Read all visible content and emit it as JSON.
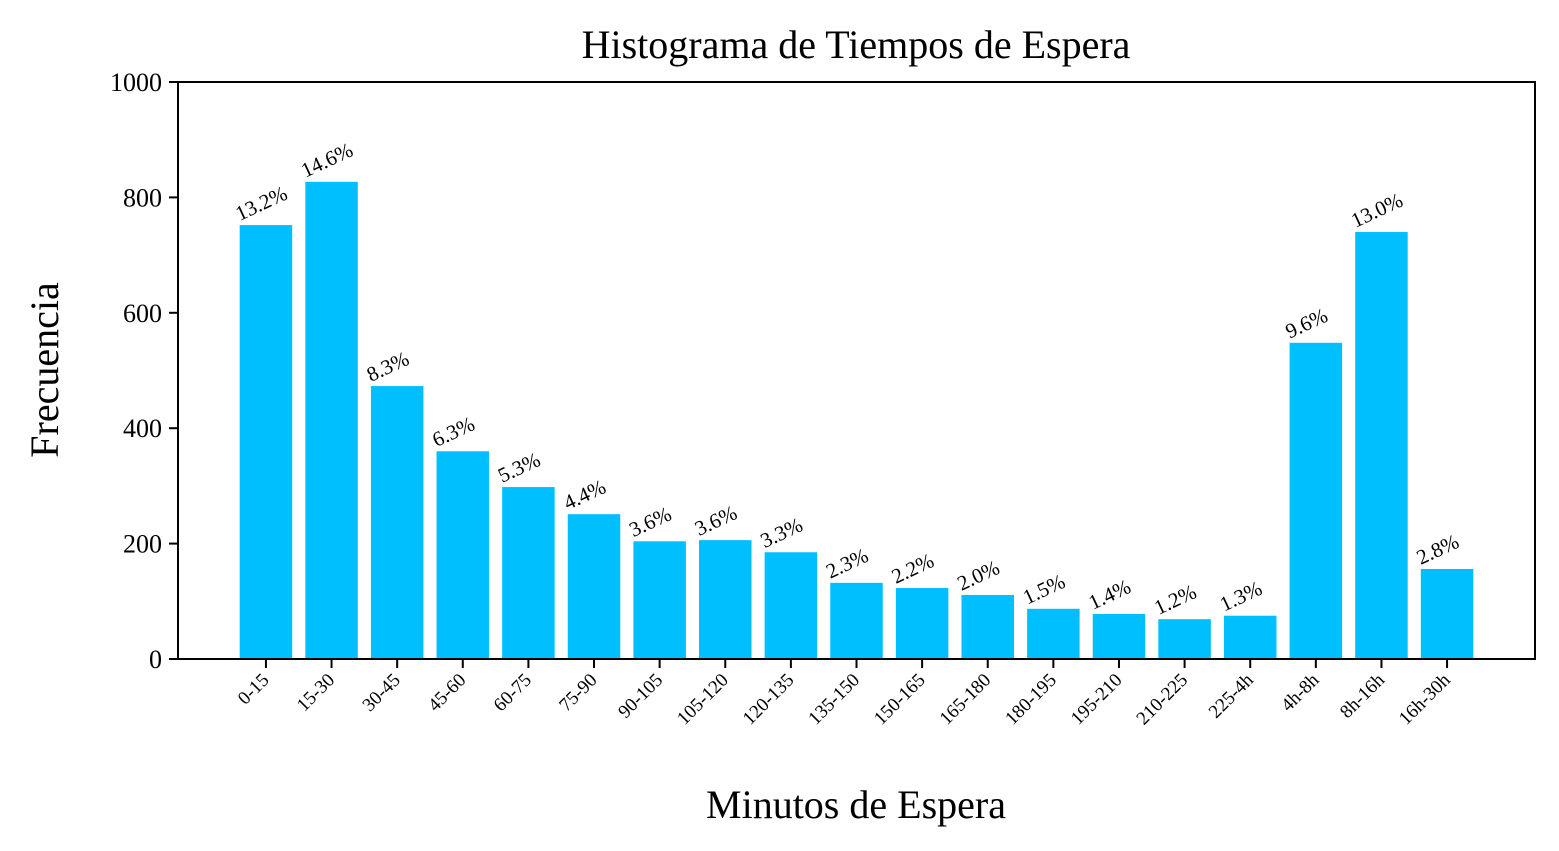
{
  "chart_data": {
    "type": "bar",
    "title": "Histograma de Tiempos de Espera",
    "x_label": "Minutos de Espera",
    "y_label": "Frecuencia",
    "categories": [
      "0-15",
      "15-30",
      "30-45",
      "45-60",
      "60-75",
      "75-90",
      "90-105",
      "105-120",
      "120-135",
      "135-150",
      "150-165",
      "165-180",
      "180-195",
      "195-210",
      "210-225",
      "225-4h",
      "4h-8h",
      "8h-16h",
      "16h-30h"
    ],
    "values": [
      752,
      827,
      473,
      360,
      298,
      251,
      204,
      206,
      185,
      132,
      123,
      111,
      87,
      78,
      69,
      75,
      548,
      740,
      156
    ],
    "annotations": [
      "13.2%",
      "14.6%",
      "8.3%",
      "6.3%",
      "5.3%",
      "4.4%",
      "3.6%",
      "3.6%",
      "3.3%",
      "2.3%",
      "2.2%",
      "2.0%",
      "1.5%",
      "1.4%",
      "1.2%",
      "1.3%",
      "9.6%",
      "13.0%",
      "2.8%"
    ],
    "color": "#00bfff",
    "ylim": [
      0,
      1000
    ],
    "yticks": [
      0,
      200,
      400,
      600,
      800,
      1000
    ],
    "grid": false
  }
}
